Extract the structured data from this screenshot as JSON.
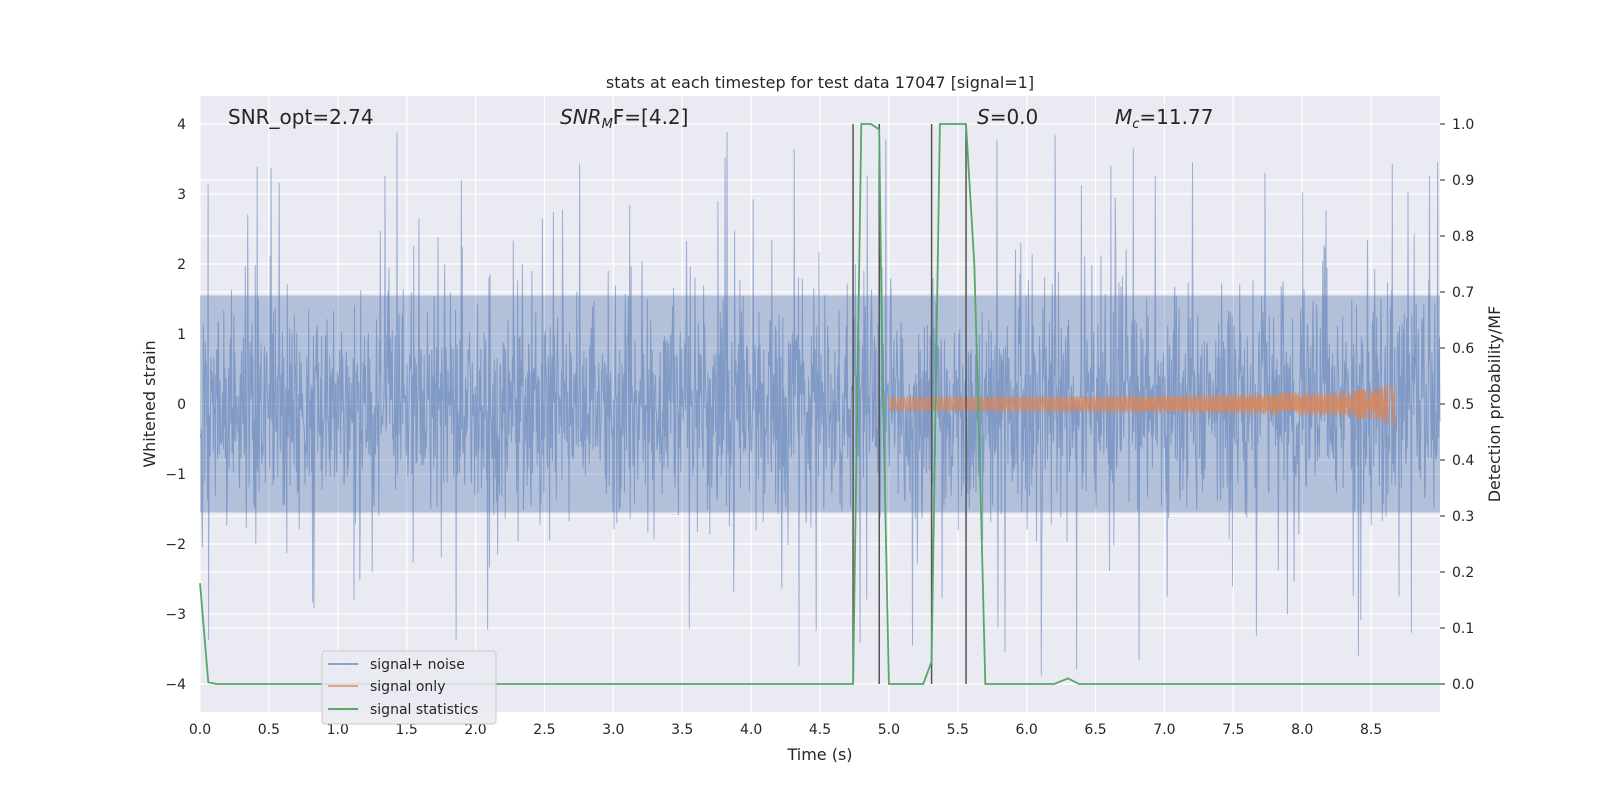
{
  "chart_data": {
    "type": "line",
    "title": "stats at each timestep for test data 17047 [signal=1]",
    "xlabel": "Time (s)",
    "ylabel_left": "Whitened strain",
    "ylabel_right": "Detection probability/MF",
    "xlim": [
      0.0,
      9.0
    ],
    "ylim_left": [
      -4.4,
      4.4
    ],
    "ylim_right": [
      -0.05,
      1.05
    ],
    "xticks": [
      "0.0",
      "0.5",
      "1.0",
      "1.5",
      "2.0",
      "2.5",
      "3.0",
      "3.5",
      "4.0",
      "4.5",
      "5.0",
      "5.5",
      "6.0",
      "6.5",
      "7.0",
      "7.5",
      "8.0",
      "8.5"
    ],
    "yticks_left": [
      "4",
      "3",
      "2",
      "1",
      "0",
      "−1",
      "−2",
      "−3",
      "−4"
    ],
    "yticks_right": [
      "1.0",
      "0.9",
      "0.8",
      "0.7",
      "0.6",
      "0.5",
      "0.4",
      "0.3",
      "0.2",
      "0.1",
      "0.0"
    ],
    "grid": true,
    "annotations": {
      "snr_opt": "SNR_opt=2.74",
      "snr_mf_base": "SNR",
      "snr_mf_sub": "M",
      "snr_mf_rest": "F=[4.2]",
      "s_base": "S",
      "s_rest": "=0.0",
      "mc_base": "M",
      "mc_sub": "c",
      "mc_rest": "=11.77"
    },
    "legend": {
      "placement": "lower-left",
      "entries": [
        "signal+ noise",
        "signal only",
        "signal statistics"
      ]
    },
    "colors": {
      "noise": "#4c72b0",
      "signal": "#dd8452",
      "stats": "#55a868",
      "vline": "#555555",
      "background": "#eaeaf2",
      "grid": "#ffffff"
    },
    "series": [
      {
        "name": "signal+ noise",
        "axis": "left",
        "description": "whitened strain noise band, roughly within ±1.6 with spikes up to about ±4"
      },
      {
        "name": "signal only",
        "axis": "left",
        "chirp_start": 5.0,
        "chirp_end": 8.67,
        "peak_amplitude": 0.4
      },
      {
        "name": "signal statistics",
        "axis": "right",
        "x": [
          0.0,
          0.06,
          0.12,
          0.2,
          1.0,
          2.0,
          3.0,
          4.0,
          4.5,
          4.74,
          4.8,
          4.87,
          4.93,
          4.95,
          5.0,
          5.1,
          5.25,
          5.31,
          5.37,
          5.56,
          5.62,
          5.66,
          5.7,
          6.0,
          6.2,
          6.3,
          6.38,
          7.0,
          8.0,
          9.0
        ],
        "values": [
          0.18,
          0.003,
          0.0,
          0.0,
          0.0,
          0.0,
          0.0,
          0.0,
          0.0,
          0.0,
          1.0,
          1.0,
          0.99,
          0.6,
          0.0,
          0.0,
          0.0,
          0.04,
          1.0,
          1.0,
          0.75,
          0.4,
          0.0,
          0.0,
          0.0,
          0.01,
          0.0,
          0.0,
          0.0,
          0.0
        ]
      }
    ],
    "vertical_lines_x": [
      4.74,
      4.93,
      5.31,
      5.56
    ]
  }
}
